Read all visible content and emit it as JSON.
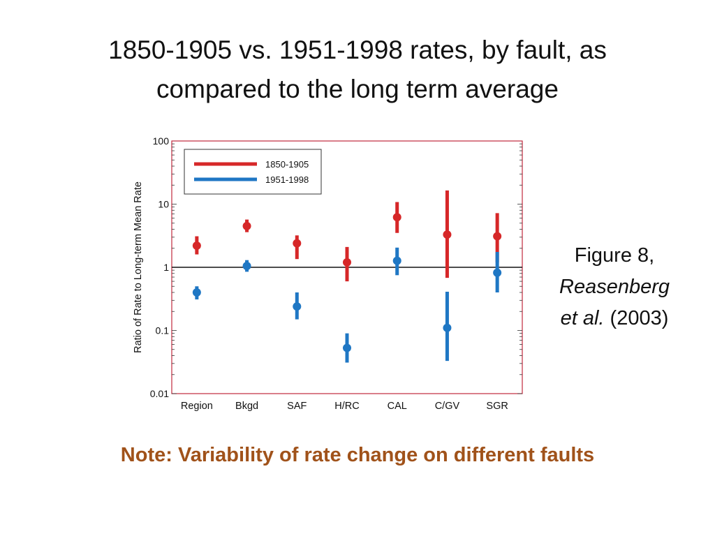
{
  "slide": {
    "title_line1": "1850-1905 vs. 1951-1998 rates, by fault, as",
    "title_line2": "compared to the long term average",
    "caption": {
      "line1": "Figure 8,",
      "author": "Reasenberg",
      "etal": "et al.",
      "year": "(2003)"
    },
    "note": "Note: Variability of rate change on different faults",
    "note_color": "#a0521a"
  },
  "chart_data": {
    "type": "scatter",
    "ylabel": "Ratio of Rate to Long-term Mean Rate",
    "y_scale": "log",
    "ylim": [
      0.01,
      100
    ],
    "y_ticks": [
      {
        "value": 100,
        "label": "100"
      },
      {
        "value": 10,
        "label": "10"
      },
      {
        "value": 1,
        "label": "1"
      },
      {
        "value": 0.1,
        "label": "0.1"
      },
      {
        "value": 0.01,
        "label": "0.01"
      }
    ],
    "reference_line": 1,
    "frame_color": "#c0283c",
    "categories": [
      "Region",
      "Bkgd",
      "SAF",
      "H/RC",
      "CAL",
      "C/GV",
      "SGR"
    ],
    "legend_position": "top-left",
    "series": [
      {
        "name": "1850-1905",
        "color": "#d62728",
        "values": [
          2.2,
          4.5,
          2.4,
          1.2,
          6.2,
          3.3,
          3.1
        ],
        "lower": [
          1.6,
          3.6,
          1.35,
          0.6,
          3.5,
          0.68,
          1.2
        ],
        "upper": [
          3.1,
          5.7,
          3.2,
          2.1,
          10.8,
          16.5,
          7.2
        ]
      },
      {
        "name": "1951-1998",
        "color": "#1f77c4",
        "values": [
          0.4,
          1.05,
          0.24,
          0.053,
          1.27,
          0.11,
          0.82
        ],
        "lower": [
          0.31,
          0.85,
          0.15,
          0.031,
          0.75,
          0.033,
          0.4
        ],
        "upper": [
          0.5,
          1.3,
          0.4,
          0.09,
          2.05,
          0.41,
          1.75
        ]
      }
    ]
  }
}
